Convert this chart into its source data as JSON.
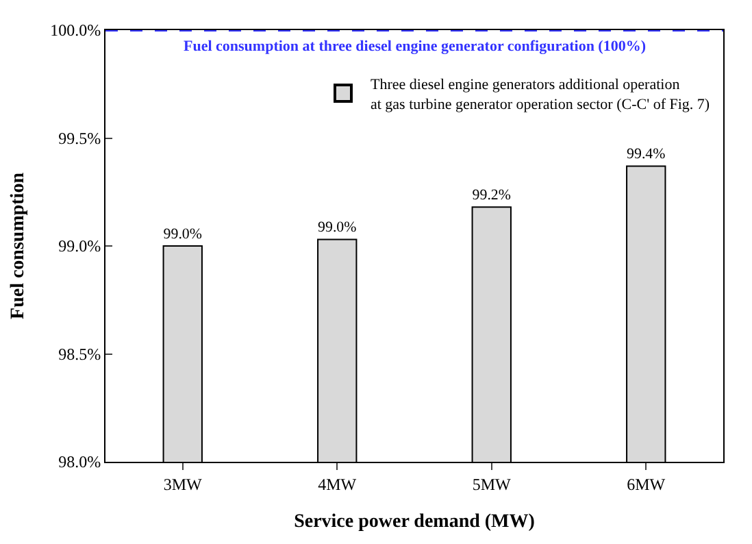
{
  "chart_data": {
    "type": "bar",
    "xlabel": "Service power demand (MW)",
    "ylabel": "Fuel consumption",
    "categories": [
      "3MW",
      "4MW",
      "5MW",
      "6MW"
    ],
    "series": [
      {
        "name": "Three diesel engine generators additional operation\nat gas turbine generator operation sector (C-C' of Fig. 7)",
        "color": "#d9d9d9",
        "values": [
          99.0,
          99.03,
          99.18,
          99.37
        ],
        "value_labels": [
          "99.0%",
          "99.0%",
          "99.2%",
          "99.4%"
        ]
      }
    ],
    "ylim": [
      98.0,
      100.0
    ],
    "yticks": [
      {
        "value": 98.0,
        "label": "98.0%"
      },
      {
        "value": 98.5,
        "label": "98.5%"
      },
      {
        "value": 99.0,
        "label": "99.0%"
      },
      {
        "value": 99.5,
        "label": "99.5%"
      },
      {
        "value": 100.0,
        "label": "100.0%"
      }
    ],
    "ref_lines": [
      {
        "axis": "y",
        "value": 100.0,
        "label": "Fuel consumption at three diesel engine generator configuration (100%)",
        "color": "#3333ff",
        "line_style": "dashed"
      }
    ],
    "legend": "top right"
  }
}
